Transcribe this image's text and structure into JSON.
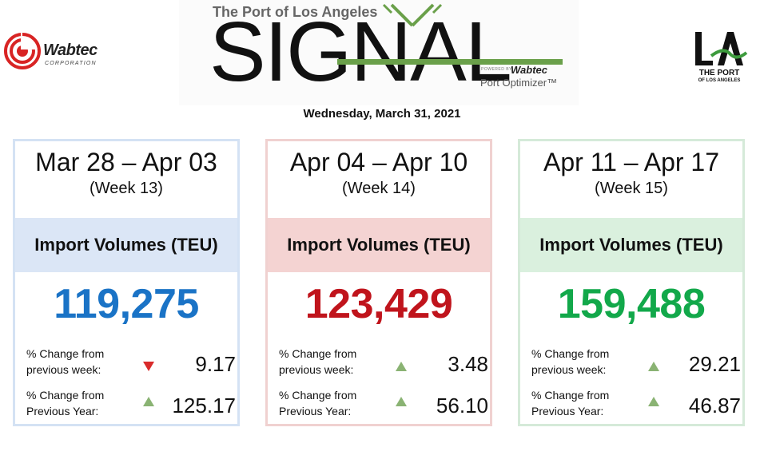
{
  "header": {
    "wabtec_brand": "Wabtec",
    "wabtec_corp": "CORPORATION",
    "signal_subtitle": "The Port of Los Angeles",
    "signal_title": "SIGNAL",
    "powered_by": "POWERED BY",
    "powered_brand": "Wabtec",
    "port_optimizer": "Port Optimizer™",
    "la_line1": "THE PORT",
    "la_line2": "OF LOS ANGELES",
    "date": "Wednesday, March 31, 2021"
  },
  "colors": {
    "week13_value": "#1a73c6",
    "week14_value": "#c0141c",
    "week15_value": "#12a84a",
    "tri_down": "#d92b2b",
    "tri_up": "#8ab373",
    "signal_green": "#6aa04a"
  },
  "cards": [
    {
      "range": "Mar 28 – Apr 03",
      "week": "(Week 13)",
      "heading": "Import Volumes (TEU)",
      "teu": "119,275",
      "wk_label_1": "% Change from",
      "wk_label_2": "previous week:",
      "wk_direction": "down",
      "wk_value": "9.17",
      "yr_label_1": "% Change from",
      "yr_label_2": "Previous Year:",
      "yr_direction": "up",
      "yr_value": "125.17"
    },
    {
      "range": "Apr 04 – Apr 10",
      "week": "(Week 14)",
      "heading": "Import Volumes (TEU)",
      "teu": "123,429",
      "wk_label_1": "% Change from",
      "wk_label_2": "previous week:",
      "wk_direction": "up",
      "wk_value": "3.48",
      "yr_label_1": "% Change from",
      "yr_label_2": "Previous Year:",
      "yr_direction": "up",
      "yr_value": "56.10"
    },
    {
      "range": "Apr 11 – Apr 17",
      "week": "(Week 15)",
      "heading": "Import Volumes (TEU)",
      "teu": "159,488",
      "wk_label_1": "% Change from",
      "wk_label_2": "previous week:",
      "wk_direction": "up",
      "wk_value": "29.21",
      "yr_label_1": "% Change from",
      "yr_label_2": "Previous Year:",
      "yr_direction": "up",
      "yr_value": "46.87"
    }
  ]
}
